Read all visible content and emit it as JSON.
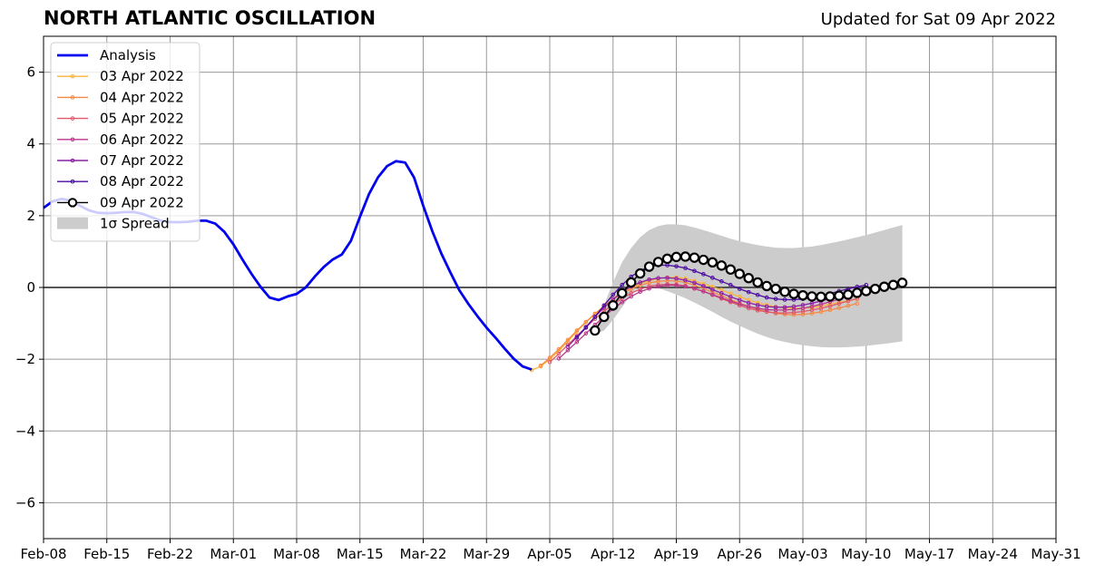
{
  "header": {
    "title": "NORTH ATLANTIC OSCILLATION",
    "updated": "Updated for Sat 09 Apr 2022"
  },
  "chart_data": {
    "type": "line",
    "title": "NORTH ATLANTIC OSCILLATION",
    "subtitle": "Updated for Sat 09 Apr 2022",
    "xlabel": "",
    "ylabel": "",
    "x_range": [
      "2022-02-08",
      "2022-05-31"
    ],
    "ylim": [
      -7,
      7
    ],
    "yticks": [
      -6,
      -4,
      -2,
      0,
      2,
      4,
      6
    ],
    "ytick_labels": [
      "−6",
      "−4",
      "−2",
      "0",
      "2",
      "4",
      "6"
    ],
    "xticks": [
      "2022-02-08",
      "2022-02-15",
      "2022-02-22",
      "2022-03-01",
      "2022-03-08",
      "2022-03-15",
      "2022-03-22",
      "2022-03-29",
      "2022-04-05",
      "2022-04-12",
      "2022-04-19",
      "2022-04-26",
      "2022-05-03",
      "2022-05-10",
      "2022-05-17",
      "2022-05-24",
      "2022-05-31"
    ],
    "xtick_labels": [
      "Feb-08",
      "Feb-15",
      "Feb-22",
      "Mar-01",
      "Mar-08",
      "Mar-15",
      "Mar-22",
      "Mar-29",
      "Apr-05",
      "Apr-12",
      "Apr-19",
      "Apr-26",
      "May-03",
      "May-10",
      "May-17",
      "May-24",
      "May-31"
    ],
    "grid": true,
    "zero_line": true,
    "legend_position": "upper-left",
    "analysis": {
      "name": "Analysis",
      "color": "#0000ee",
      "x": [
        "2022-02-08",
        "2022-02-09",
        "2022-02-10",
        "2022-02-11",
        "2022-02-12",
        "2022-02-13",
        "2022-02-14",
        "2022-02-15",
        "2022-02-16",
        "2022-02-17",
        "2022-02-18",
        "2022-02-19",
        "2022-02-20",
        "2022-02-21",
        "2022-02-22",
        "2022-02-23",
        "2022-02-24",
        "2022-02-25",
        "2022-02-26",
        "2022-02-27",
        "2022-02-28",
        "2022-03-01",
        "2022-03-02",
        "2022-03-03",
        "2022-03-04",
        "2022-03-05",
        "2022-03-06",
        "2022-03-07",
        "2022-03-08",
        "2022-03-09",
        "2022-03-10",
        "2022-03-11",
        "2022-03-12",
        "2022-03-13",
        "2022-03-14",
        "2022-03-15",
        "2022-03-16",
        "2022-03-17",
        "2022-03-18",
        "2022-03-19",
        "2022-03-20",
        "2022-03-21",
        "2022-03-22",
        "2022-03-23",
        "2022-03-24",
        "2022-03-25",
        "2022-03-26",
        "2022-03-27",
        "2022-03-28",
        "2022-03-29",
        "2022-03-30",
        "2022-03-31",
        "2022-04-01",
        "2022-04-02",
        "2022-04-03"
      ],
      "y": [
        2.22,
        2.4,
        2.47,
        2.42,
        2.28,
        2.15,
        2.08,
        2.07,
        2.08,
        2.1,
        2.1,
        2.05,
        1.95,
        1.86,
        1.82,
        1.82,
        1.83,
        1.86,
        1.86,
        1.78,
        1.55,
        1.2,
        0.78,
        0.38,
        0.02,
        -0.28,
        -0.35,
        -0.25,
        -0.18,
        0.0,
        0.3,
        0.57,
        0.78,
        0.92,
        1.3,
        1.97,
        2.6,
        3.07,
        3.38,
        3.52,
        3.48,
        3.06,
        2.28,
        1.57,
        0.95,
        0.42,
        -0.08,
        -0.46,
        -0.8,
        -1.12,
        -1.4,
        -1.7,
        -1.98,
        -2.2,
        -2.29
      ]
    },
    "forecast_dates": [
      "2022-04-03",
      "2022-04-04",
      "2022-04-05",
      "2022-04-06",
      "2022-04-07",
      "2022-04-08",
      "2022-04-09",
      "2022-04-10",
      "2022-04-11",
      "2022-04-12",
      "2022-04-13",
      "2022-04-14",
      "2022-04-15",
      "2022-04-16",
      "2022-04-17",
      "2022-04-18",
      "2022-04-19",
      "2022-04-20",
      "2022-04-21",
      "2022-04-22",
      "2022-04-23",
      "2022-04-24",
      "2022-04-25",
      "2022-04-26",
      "2022-04-27",
      "2022-04-28",
      "2022-04-29",
      "2022-04-30",
      "2022-05-01",
      "2022-05-02",
      "2022-05-03",
      "2022-05-04",
      "2022-05-05",
      "2022-05-06",
      "2022-05-07",
      "2022-05-08",
      "2022-05-09",
      "2022-05-10",
      "2022-05-11",
      "2022-05-12",
      "2022-05-13",
      "2022-05-14"
    ],
    "series": [
      {
        "name": "03 Apr 2022",
        "color": "#fcb33b",
        "start": "2022-04-03",
        "values": [
          -2.3,
          -2.2,
          -2.0,
          -1.77,
          -1.5,
          -1.23,
          -0.97,
          -0.74,
          -0.52,
          -0.32,
          -0.14,
          0.0,
          0.11,
          0.19,
          0.25,
          0.28,
          0.28,
          0.25,
          0.18,
          0.1,
          0.02,
          -0.07,
          -0.17,
          -0.26,
          -0.35,
          -0.43,
          -0.49,
          -0.54,
          -0.57,
          -0.58,
          -0.58,
          -0.56,
          -0.52,
          -0.47,
          -0.42,
          -0.37,
          -0.32
        ]
      },
      {
        "name": "04 Apr 2022",
        "color": "#f58a45",
        "start": "2022-04-04",
        "values": [
          -2.18,
          -1.96,
          -1.72,
          -1.46,
          -1.2,
          -0.96,
          -0.73,
          -0.52,
          -0.33,
          -0.17,
          -0.04,
          0.06,
          0.13,
          0.17,
          0.19,
          0.18,
          0.14,
          0.06,
          -0.03,
          -0.13,
          -0.23,
          -0.34,
          -0.44,
          -0.53,
          -0.61,
          -0.67,
          -0.72,
          -0.75,
          -0.76,
          -0.75,
          -0.72,
          -0.68,
          -0.63,
          -0.57,
          -0.51,
          -0.45
        ]
      },
      {
        "name": "05 Apr 2022",
        "color": "#e0586a",
        "start": "2022-04-05",
        "values": [
          -2.08,
          -1.85,
          -1.6,
          -1.35,
          -1.11,
          -0.88,
          -0.66,
          -0.47,
          -0.3,
          -0.16,
          -0.05,
          0.03,
          0.07,
          0.09,
          0.08,
          0.04,
          -0.03,
          -0.11,
          -0.21,
          -0.31,
          -0.41,
          -0.5,
          -0.58,
          -0.64,
          -0.68,
          -0.71,
          -0.71,
          -0.7,
          -0.67,
          -0.63,
          -0.58,
          -0.52,
          -0.45,
          -0.38,
          -0.31
        ]
      },
      {
        "name": "06 Apr 2022",
        "color": "#b83689",
        "start": "2022-04-06",
        "values": [
          -1.98,
          -1.75,
          -1.52,
          -1.28,
          -1.04,
          -0.81,
          -0.6,
          -0.41,
          -0.25,
          -0.12,
          -0.03,
          0.03,
          0.06,
          0.06,
          0.03,
          -0.03,
          -0.11,
          -0.2,
          -0.29,
          -0.38,
          -0.46,
          -0.53,
          -0.58,
          -0.62,
          -0.63,
          -0.63,
          -0.61,
          -0.58,
          -0.53,
          -0.47,
          -0.4,
          -0.33,
          -0.25,
          -0.17
        ]
      },
      {
        "name": "07 Apr 2022",
        "color": "#8a1fa5",
        "start": "2022-04-07",
        "values": [
          -1.65,
          -1.38,
          -1.1,
          -0.82,
          -0.56,
          -0.33,
          -0.13,
          0.03,
          0.14,
          0.22,
          0.26,
          0.27,
          0.25,
          0.2,
          0.13,
          0.04,
          -0.06,
          -0.16,
          -0.26,
          -0.35,
          -0.43,
          -0.49,
          -0.53,
          -0.55,
          -0.55,
          -0.53,
          -0.49,
          -0.44,
          -0.38,
          -0.31,
          -0.24,
          -0.16,
          -0.09,
          -0.03
        ]
      },
      {
        "name": "08 Apr 2022",
        "color": "#4b0aa0",
        "start": "2022-04-08",
        "values": [
          -1.4,
          -1.12,
          -0.82,
          -0.5,
          -0.2,
          0.07,
          0.3,
          0.47,
          0.58,
          0.62,
          0.62,
          0.59,
          0.54,
          0.46,
          0.37,
          0.27,
          0.17,
          0.07,
          -0.04,
          -0.13,
          -0.21,
          -0.28,
          -0.32,
          -0.34,
          -0.34,
          -0.32,
          -0.28,
          -0.23,
          -0.17,
          -0.1,
          -0.04,
          0.02,
          0.07
        ]
      },
      {
        "name": "09 Apr 2022",
        "color": "#000000",
        "start": "2022-04-10",
        "values": [
          -1.2,
          -0.82,
          -0.5,
          -0.16,
          0.14,
          0.39,
          0.58,
          0.71,
          0.8,
          0.85,
          0.86,
          0.83,
          0.77,
          0.7,
          0.61,
          0.5,
          0.38,
          0.26,
          0.14,
          0.04,
          -0.04,
          -0.12,
          -0.18,
          -0.22,
          -0.25,
          -0.26,
          -0.25,
          -0.23,
          -0.2,
          -0.15,
          -0.1,
          -0.04,
          0.02,
          0.07,
          0.13
        ]
      }
    ],
    "spread": {
      "name": "1σ Spread",
      "color": "#cccccc",
      "upper": [
        -1.2,
        -0.5,
        0.15,
        0.7,
        1.1,
        1.4,
        1.6,
        1.71,
        1.76,
        1.76,
        1.73,
        1.67,
        1.6,
        1.52,
        1.44,
        1.36,
        1.29,
        1.23,
        1.18,
        1.14,
        1.11,
        1.1,
        1.1,
        1.12,
        1.14,
        1.18,
        1.23,
        1.28,
        1.34,
        1.4,
        1.46,
        1.53,
        1.6,
        1.67,
        1.74
      ],
      "lower": [
        -1.3,
        -1.2,
        -0.9,
        -0.55,
        -0.2,
        0.0,
        0.02,
        -0.02,
        -0.1,
        -0.2,
        -0.3,
        -0.42,
        -0.55,
        -0.68,
        -0.82,
        -0.95,
        -1.07,
        -1.18,
        -1.29,
        -1.38,
        -1.46,
        -1.52,
        -1.57,
        -1.61,
        -1.64,
        -1.66,
        -1.67,
        -1.67,
        -1.66,
        -1.65,
        -1.63,
        -1.6,
        -1.57,
        -1.54,
        -1.5
      ]
    },
    "legend": [
      "Analysis",
      "03 Apr 2022",
      "04 Apr 2022",
      "05 Apr 2022",
      "06 Apr 2022",
      "07 Apr 2022",
      "08 Apr 2022",
      "09 Apr 2022",
      "1σ Spread"
    ]
  }
}
